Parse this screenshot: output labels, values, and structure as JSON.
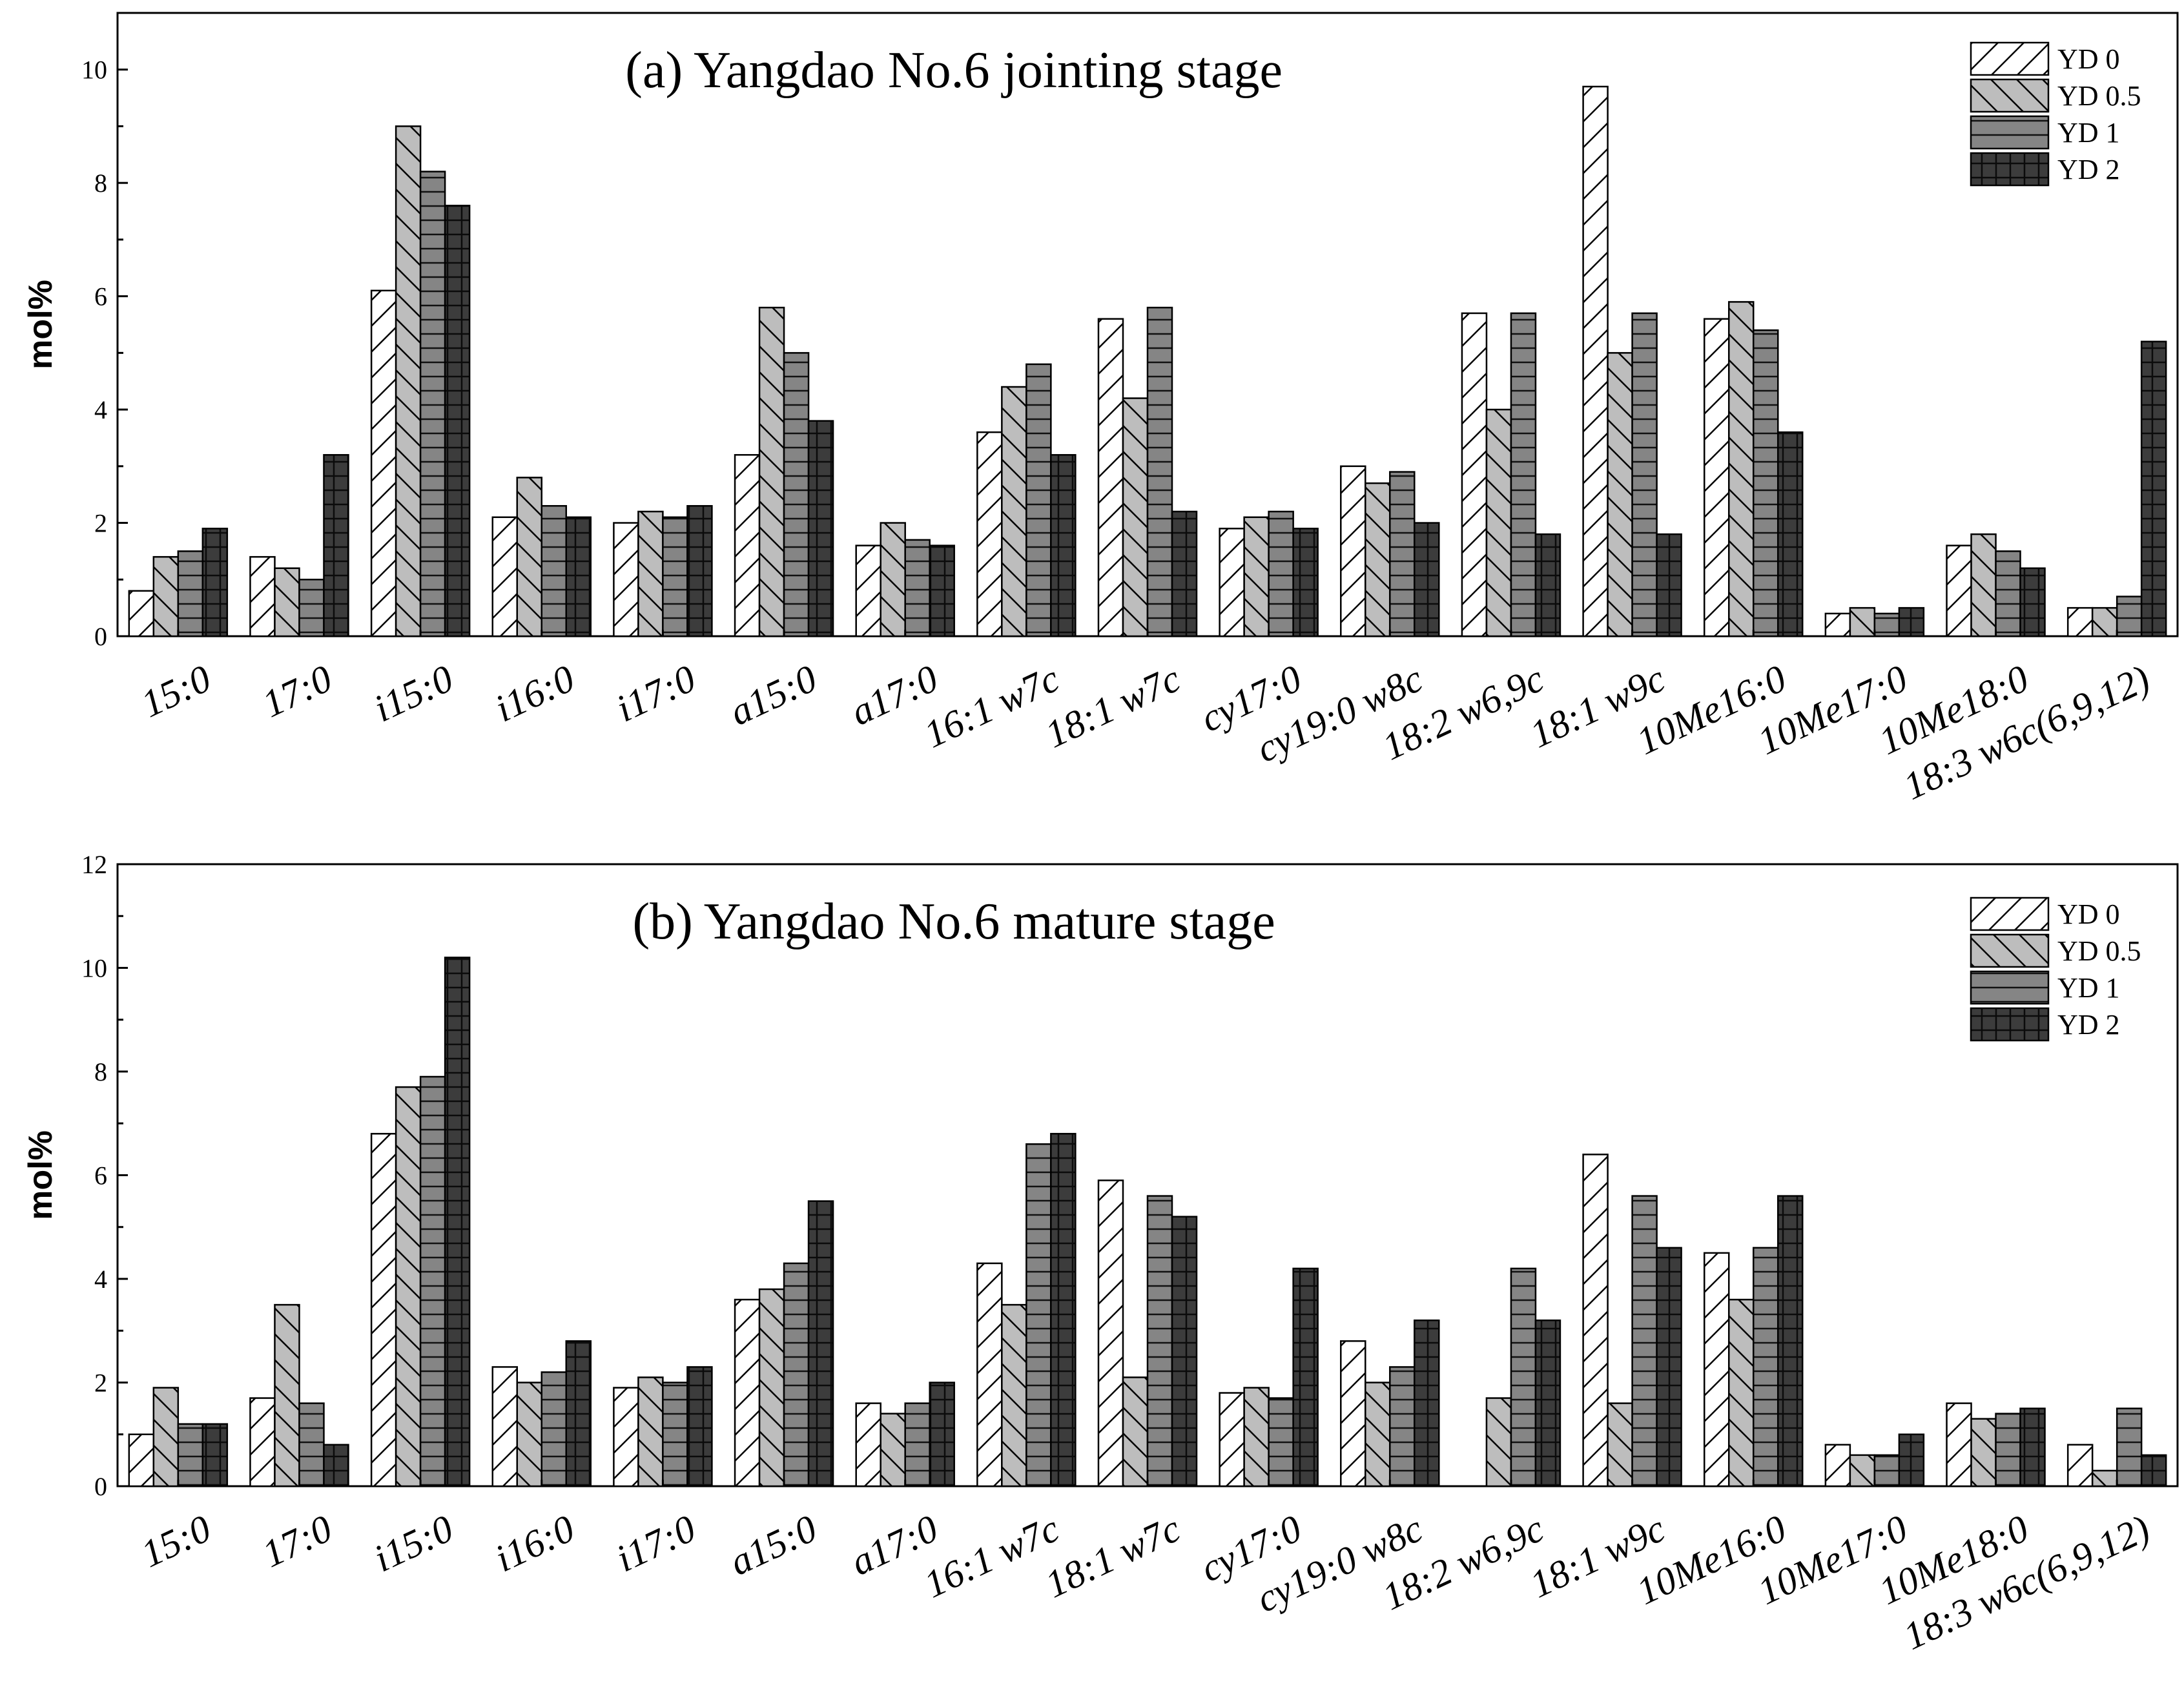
{
  "chart_data": [
    {
      "type": "bar",
      "title": "(a) Yangdao No.6 jointing stage",
      "xlabel": "",
      "ylabel": "mol%",
      "ylim": [
        0,
        11
      ],
      "yticks": [
        0,
        2,
        4,
        6,
        8,
        10
      ],
      "legend_position": "top-right",
      "categories": [
        "15:0",
        "17:0",
        "i15:0",
        "i16:0",
        "i17:0",
        "a15:0",
        "a17:0",
        "16:1 w7c",
        "18:1 w7c",
        "cy17:0",
        "cy19:0 w8c",
        "18:2 w6,9c",
        "18:1 w9c",
        "10Me16:0",
        "10Me17:0",
        "10Me18:0",
        "18:3 w6c(6,9,12)"
      ],
      "series": [
        {
          "name": "YD 0",
          "values": [
            0.8,
            1.4,
            6.1,
            2.1,
            2.0,
            3.2,
            1.6,
            3.6,
            5.6,
            1.9,
            3.0,
            5.7,
            9.7,
            5.6,
            0.4,
            1.6,
            0.5
          ]
        },
        {
          "name": "YD 0.5",
          "values": [
            1.4,
            1.2,
            9.0,
            2.8,
            2.2,
            5.8,
            2.0,
            4.4,
            4.2,
            2.1,
            2.7,
            4.0,
            5.0,
            5.9,
            0.5,
            1.8,
            0.5
          ]
        },
        {
          "name": "YD 1",
          "values": [
            1.5,
            1.0,
            8.2,
            2.3,
            2.1,
            5.0,
            1.7,
            4.8,
            5.8,
            2.2,
            2.9,
            5.7,
            5.7,
            5.4,
            0.4,
            1.5,
            0.7
          ]
        },
        {
          "name": "YD 2",
          "values": [
            1.9,
            3.2,
            7.6,
            2.1,
            2.3,
            3.8,
            1.6,
            3.2,
            2.2,
            1.9,
            2.0,
            1.8,
            1.8,
            3.6,
            0.5,
            1.2,
            5.2
          ]
        }
      ]
    },
    {
      "type": "bar",
      "title": "(b) Yangdao No.6 mature stage",
      "xlabel": "",
      "ylabel": "mol%",
      "ylim": [
        0,
        12
      ],
      "yticks": [
        0,
        2,
        4,
        6,
        8,
        10,
        12
      ],
      "legend_position": "top-right",
      "categories": [
        "15:0",
        "17:0",
        "i15:0",
        "i16:0",
        "i17:0",
        "a15:0",
        "a17:0",
        "16:1 w7c",
        "18:1 w7c",
        "cy17:0",
        "cy19:0 w8c",
        "18:2 w6,9c",
        "18:1 w9c",
        "10Me16:0",
        "10Me17:0",
        "10Me18:0",
        "18:3 w6c(6,9,12)"
      ],
      "series": [
        {
          "name": "YD 0",
          "values": [
            1.0,
            1.7,
            6.8,
            2.3,
            1.9,
            3.6,
            1.6,
            4.3,
            5.9,
            1.8,
            2.8,
            0.0,
            6.4,
            4.5,
            0.8,
            1.6,
            0.8
          ]
        },
        {
          "name": "YD 0.5",
          "values": [
            1.9,
            3.5,
            7.7,
            2.0,
            2.1,
            3.8,
            1.4,
            3.5,
            2.1,
            1.9,
            2.0,
            1.7,
            1.6,
            3.6,
            0.6,
            1.3,
            0.3
          ]
        },
        {
          "name": "YD 1",
          "values": [
            1.2,
            1.6,
            7.9,
            2.2,
            2.0,
            4.3,
            1.6,
            6.6,
            5.6,
            1.7,
            2.3,
            4.2,
            5.6,
            4.6,
            0.6,
            1.4,
            1.5
          ]
        },
        {
          "name": "YD 2",
          "values": [
            1.2,
            0.8,
            10.2,
            2.8,
            2.3,
            5.5,
            2.0,
            6.8,
            5.2,
            4.2,
            3.2,
            3.2,
            4.6,
            5.6,
            1.0,
            1.5,
            0.6
          ]
        }
      ]
    }
  ]
}
